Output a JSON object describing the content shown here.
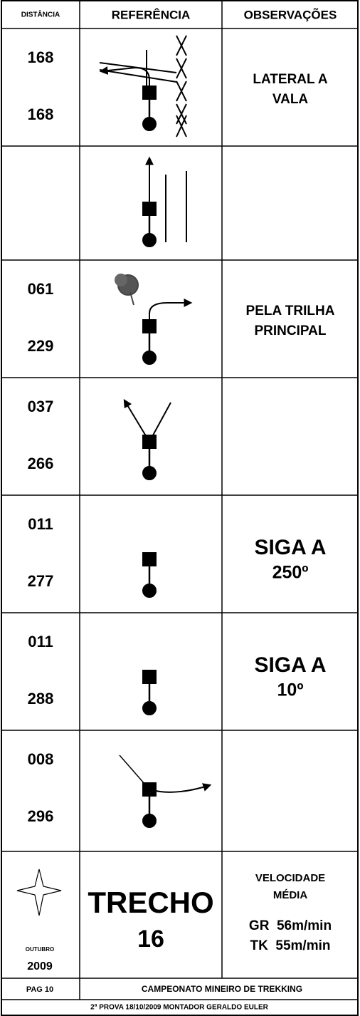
{
  "header": {
    "columns": [
      "DISTÂNCIA",
      "REFERÊNCIA",
      "OBSERVAÇÕES"
    ]
  },
  "rows": [
    {
      "distances": [
        "168",
        "168"
      ],
      "observation": [
        "LATERAL A",
        "VALA"
      ]
    },
    {},
    {
      "distances": [
        "061",
        "229"
      ],
      "observation": [
        "PELA TRILHA",
        "PRINCIPAL"
      ]
    },
    {
      "distances": [
        "037",
        "266"
      ]
    },
    {
      "distances": [
        "011",
        "277"
      ],
      "observation": [
        "SIGA A",
        "250º"
      ]
    },
    {
      "distances": [
        "011",
        "288"
      ],
      "observation": [
        "SIGA A",
        "10º"
      ]
    },
    {
      "distances": [
        "008",
        "296"
      ]
    }
  ],
  "footer": {
    "month": "OUTUBRO",
    "year": "2009",
    "section": [
      "TRECHO",
      "16"
    ],
    "speed_title": [
      "VELOCIDADE",
      "MÉDIA"
    ],
    "speeds": [
      "GR  56m/min",
      "TK  55m/min"
    ],
    "page": "PAG 10",
    "championship": "CAMPEONATO MINEIRO DE TREKKING",
    "event": "2ª PROVA 18/10/2009 MONTADOR GERALDO EULER"
  }
}
